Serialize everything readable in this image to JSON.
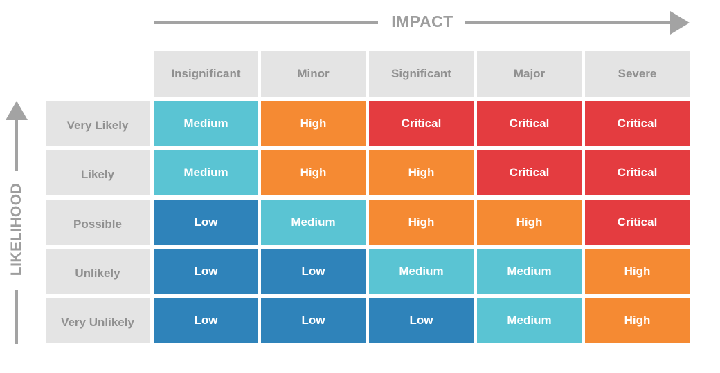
{
  "axes": {
    "impact_label": "IMPACT",
    "likelihood_label": "LIKELIHOOD"
  },
  "columns": [
    "Insignificant",
    "Minor",
    "Significant",
    "Major",
    "Severe"
  ],
  "rows": [
    {
      "label": "Very Likely",
      "cells": [
        "Medium",
        "High",
        "Critical",
        "Critical",
        "Critical"
      ]
    },
    {
      "label": "Likely",
      "cells": [
        "Medium",
        "High",
        "High",
        "Critical",
        "Critical"
      ]
    },
    {
      "label": "Possible",
      "cells": [
        "Low",
        "Medium",
        "High",
        "High",
        "Critical"
      ]
    },
    {
      "label": "Unlikely",
      "cells": [
        "Low",
        "Low",
        "Medium",
        "Medium",
        "High"
      ]
    },
    {
      "label": "Very Unlikely",
      "cells": [
        "Low",
        "Low",
        "Low",
        "Medium",
        "High"
      ]
    }
  ],
  "risk_colors": {
    "Low": "#2f83ba",
    "Medium": "#5ac4d3",
    "High": "#f58a33",
    "Critical": "#e43c40"
  }
}
